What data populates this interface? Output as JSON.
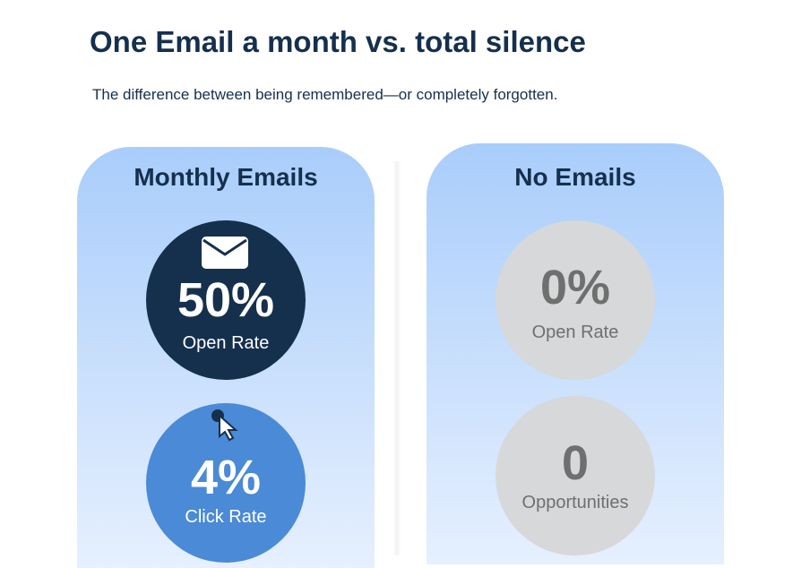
{
  "header": {
    "title": "One Email a month vs. total silence",
    "subtitle": "The difference between being remembered—or completely forgotten."
  },
  "monthly": {
    "heading": "Monthly Emails",
    "open_value": "50%",
    "open_label": "Open Rate",
    "click_value": "4%",
    "click_label": "Click Rate"
  },
  "none": {
    "heading": "No Emails",
    "open_value": "0%",
    "open_label": "Open Rate",
    "opp_value": "0",
    "opp_label": "Opportunities"
  },
  "colors": {
    "dark": "#15304d",
    "blue": "#4a8ad6",
    "gray": "#d6d8da"
  }
}
